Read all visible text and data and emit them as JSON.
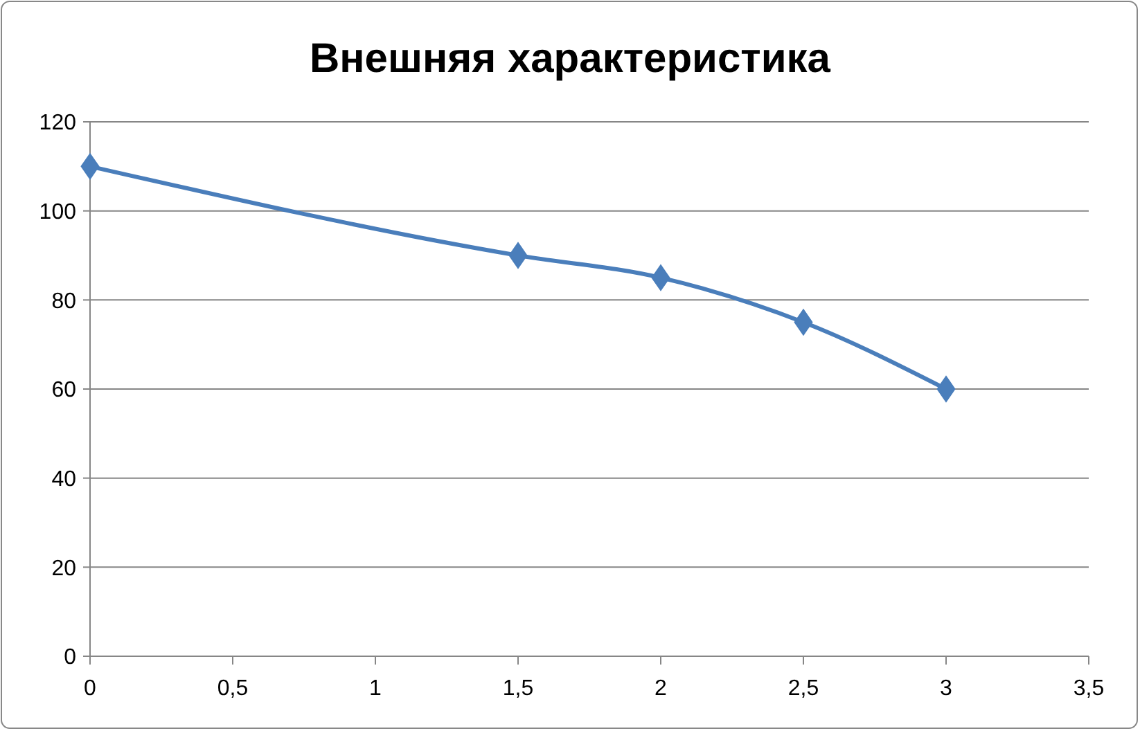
{
  "chart_data": {
    "type": "line",
    "title": "Внешняя характеристика",
    "x": [
      0,
      1.5,
      2,
      2.5,
      3
    ],
    "series": [
      {
        "color": "#4a7ebb",
        "values": [
          110,
          90,
          85,
          75,
          60
        ]
      }
    ],
    "xlim": [
      0,
      3.5
    ],
    "xticks": [
      0,
      {
        "value": 0.5,
        "label": "0,5"
      },
      1,
      {
        "value": 1.5,
        "label": "1,5"
      },
      2,
      {
        "value": 2.5,
        "label": "2,5"
      },
      3,
      {
        "value": 3.5,
        "label": "3,5"
      }
    ],
    "ylim": [
      0,
      120
    ],
    "yticks": [
      0,
      20,
      40,
      60,
      80,
      100,
      120
    ],
    "grid": "y",
    "marker": "diamond",
    "line_style": "solid"
  }
}
